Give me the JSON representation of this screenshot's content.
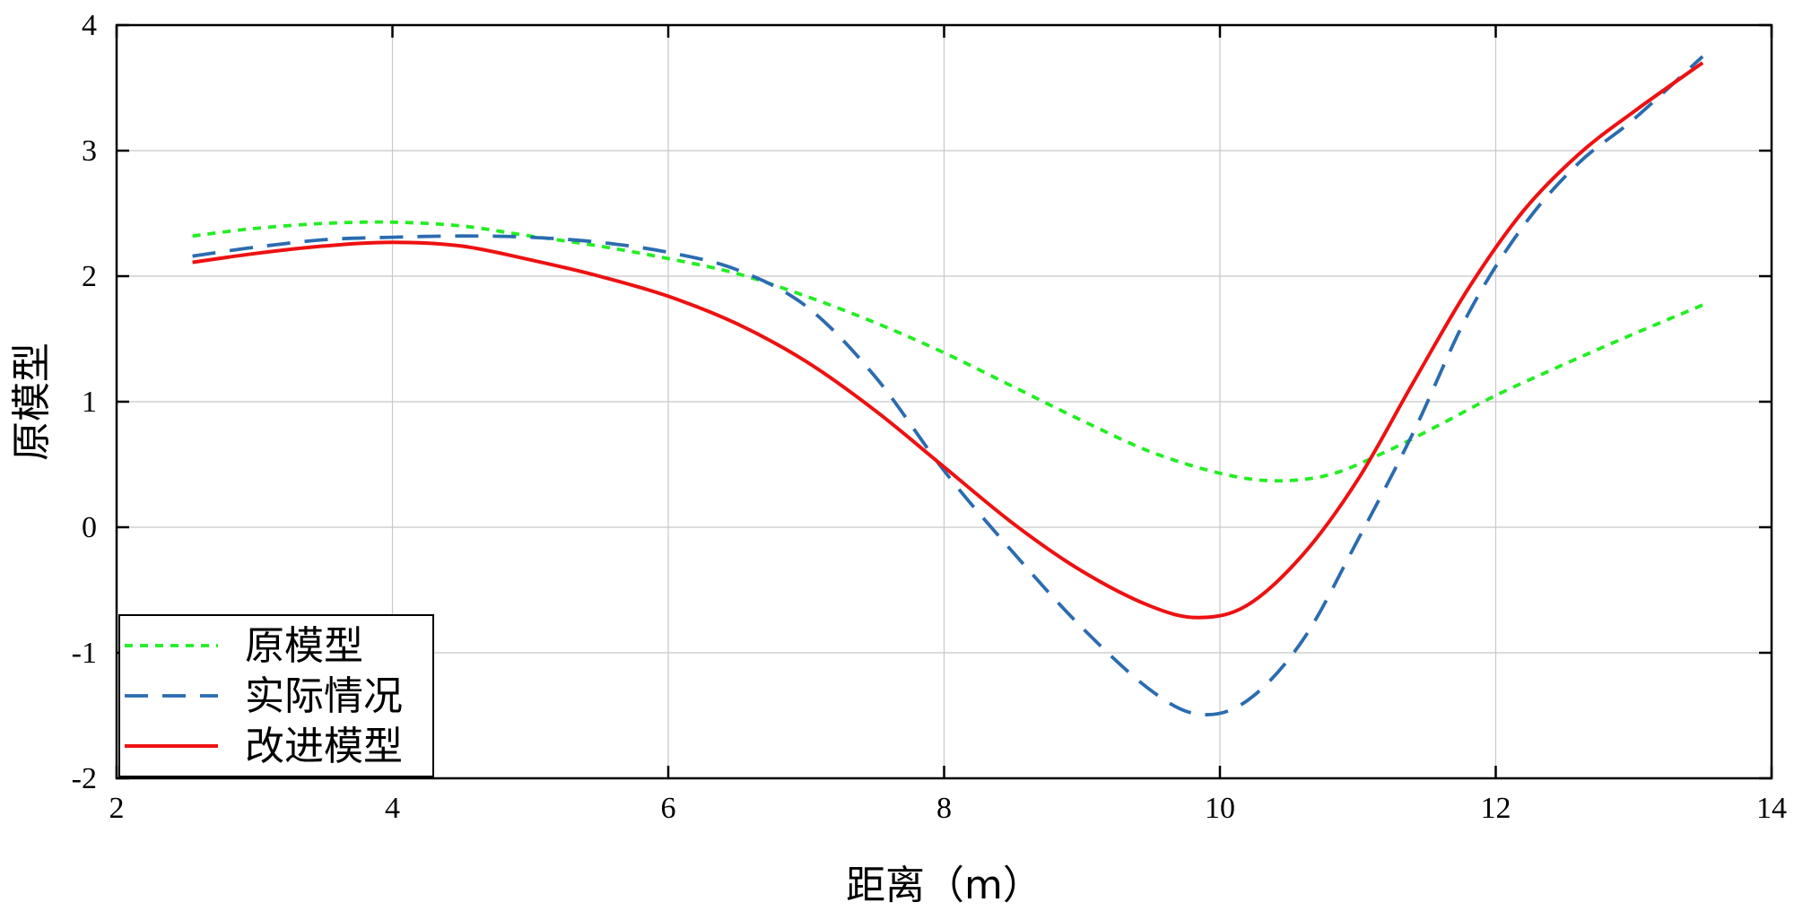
{
  "chart_data": {
    "type": "line",
    "title": "",
    "xlabel": "距离（m）",
    "ylabel": "原模型",
    "xlim": [
      2,
      14
    ],
    "ylim": [
      -2,
      4
    ],
    "xticks": [
      2,
      4,
      6,
      8,
      10,
      12,
      14
    ],
    "yticks": [
      -2,
      -1,
      0,
      1,
      2,
      3,
      4
    ],
    "grid": true,
    "legend_position": "bottom-left",
    "series": [
      {
        "name": "原模型",
        "color": "#22ee22",
        "style": "dotted",
        "x": [
          2.55,
          3.0,
          3.5,
          4.0,
          4.5,
          5.0,
          5.5,
          6.0,
          6.5,
          7.0,
          7.5,
          8.0,
          8.5,
          9.0,
          9.5,
          10.0,
          10.4,
          10.8,
          11.2,
          11.6,
          12.0,
          12.5,
          13.0,
          13.5
        ],
        "y": [
          2.32,
          2.38,
          2.42,
          2.43,
          2.4,
          2.32,
          2.24,
          2.14,
          2.02,
          1.84,
          1.63,
          1.39,
          1.12,
          0.85,
          0.6,
          0.43,
          0.37,
          0.42,
          0.6,
          0.82,
          1.05,
          1.3,
          1.54,
          1.77
        ]
      },
      {
        "name": "实际情况",
        "color": "#2a6cb0",
        "style": "dashed",
        "x": [
          2.55,
          3.0,
          3.5,
          4.0,
          4.5,
          5.0,
          5.5,
          6.0,
          6.5,
          7.0,
          7.5,
          8.0,
          8.5,
          9.0,
          9.5,
          9.85,
          10.2,
          10.6,
          11.0,
          11.4,
          11.8,
          12.2,
          12.6,
          13.0,
          13.5
        ],
        "y": [
          2.16,
          2.23,
          2.29,
          2.31,
          2.32,
          2.31,
          2.27,
          2.19,
          2.05,
          1.76,
          1.2,
          0.45,
          -0.2,
          -0.8,
          -1.3,
          -1.49,
          -1.38,
          -0.9,
          -0.1,
          0.75,
          1.7,
          2.4,
          2.9,
          3.25,
          3.75
        ]
      },
      {
        "name": "改进模型",
        "color": "#ee1111",
        "style": "solid",
        "x": [
          2.55,
          3.0,
          3.5,
          4.0,
          4.5,
          5.0,
          5.5,
          6.0,
          6.5,
          7.0,
          7.5,
          8.0,
          8.5,
          9.0,
          9.5,
          9.85,
          10.2,
          10.6,
          11.0,
          11.4,
          11.8,
          12.2,
          12.6,
          13.0,
          13.5
        ],
        "y": [
          2.11,
          2.18,
          2.24,
          2.27,
          2.24,
          2.13,
          2.0,
          1.84,
          1.62,
          1.32,
          0.93,
          0.48,
          0.03,
          -0.35,
          -0.63,
          -0.72,
          -0.62,
          -0.22,
          0.38,
          1.15,
          1.9,
          2.52,
          2.97,
          3.31,
          3.7
        ]
      }
    ]
  }
}
